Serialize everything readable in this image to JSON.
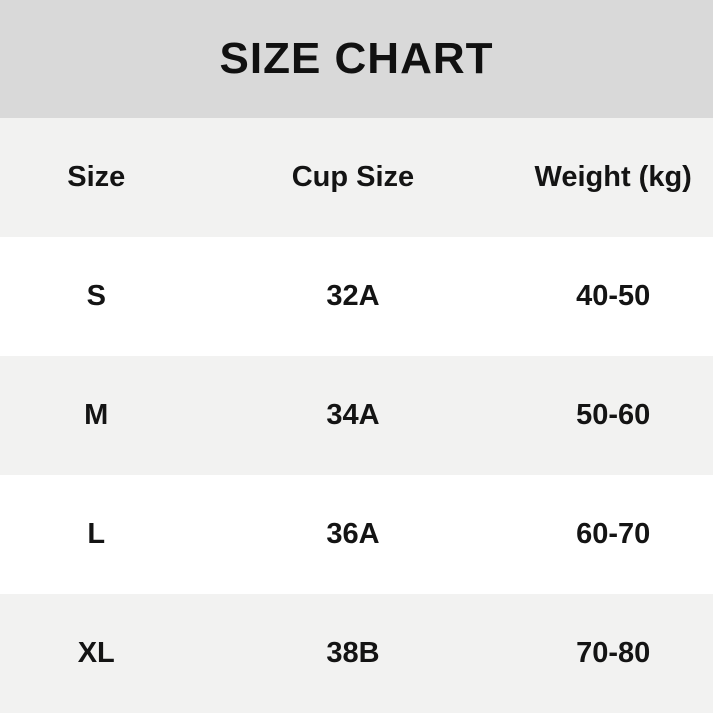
{
  "chart_data": {
    "type": "table",
    "title": "SIZE CHART",
    "columns": [
      "Size",
      "Cup Size",
      "Weight (kg)"
    ],
    "rows": [
      [
        "S",
        "32A",
        "40-50"
      ],
      [
        "M",
        "34A",
        "50-60"
      ],
      [
        "L",
        "36A",
        "60-70"
      ],
      [
        "XL",
        "38B",
        "70-80"
      ]
    ]
  },
  "colors": {
    "title_band_bg": "#d9d9d9",
    "row_alt_bg": "#f2f2f1",
    "row_white_bg": "#ffffff",
    "text": "#141414"
  }
}
